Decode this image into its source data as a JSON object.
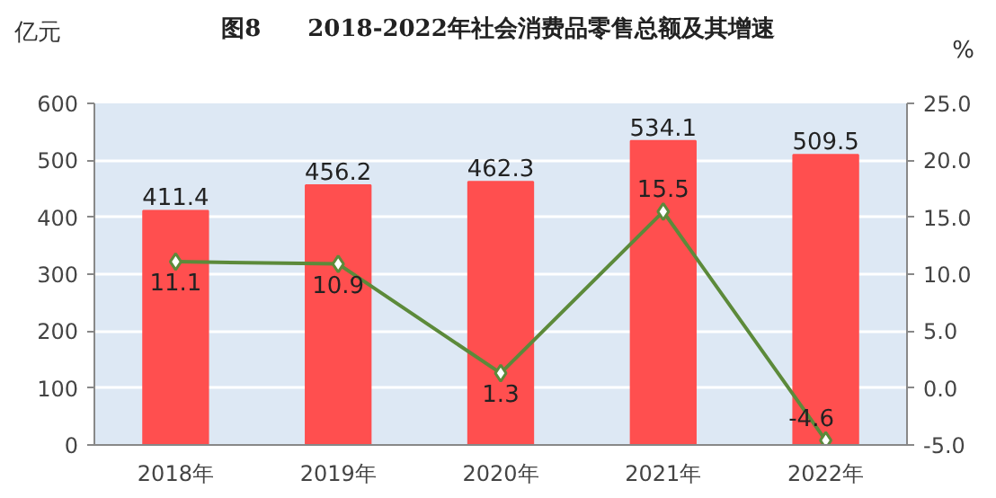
{
  "chart_data": {
    "type": "bar",
    "title": "图8　　2018-2022年社会消费品零售总额及其增速",
    "ylabel": "亿元",
    "y2label": "%",
    "categories": [
      "2018年",
      "2019年",
      "2020年",
      "2021年",
      "2022年"
    ],
    "series": [
      {
        "color": "#ff4f4f",
        "values": [
          411.4,
          456.2,
          462.3,
          534.1,
          509.5
        ]
      },
      {
        "type": "line",
        "axis": "y2",
        "color": "#5c8a3a",
        "marker": "diamond",
        "values": [
          11.1,
          10.9,
          1.3,
          15.5,
          -4.6
        ]
      }
    ],
    "ylim": [
      0,
      600
    ],
    "yticks": [
      0,
      100,
      200,
      300,
      400,
      500,
      600
    ],
    "y2lim": [
      -5,
      25
    ],
    "y2ticks": [
      {
        "value": -5,
        "label": "-5.0"
      },
      {
        "value": 0,
        "label": "0.0"
      },
      {
        "value": 5,
        "label": "5.0"
      },
      {
        "value": 10,
        "label": "10.0"
      },
      {
        "value": 15,
        "label": "15.0"
      },
      {
        "value": 20,
        "label": "20.0"
      },
      {
        "value": 25,
        "label": "25.0"
      }
    ],
    "grid": "y",
    "data_labels": true
  }
}
